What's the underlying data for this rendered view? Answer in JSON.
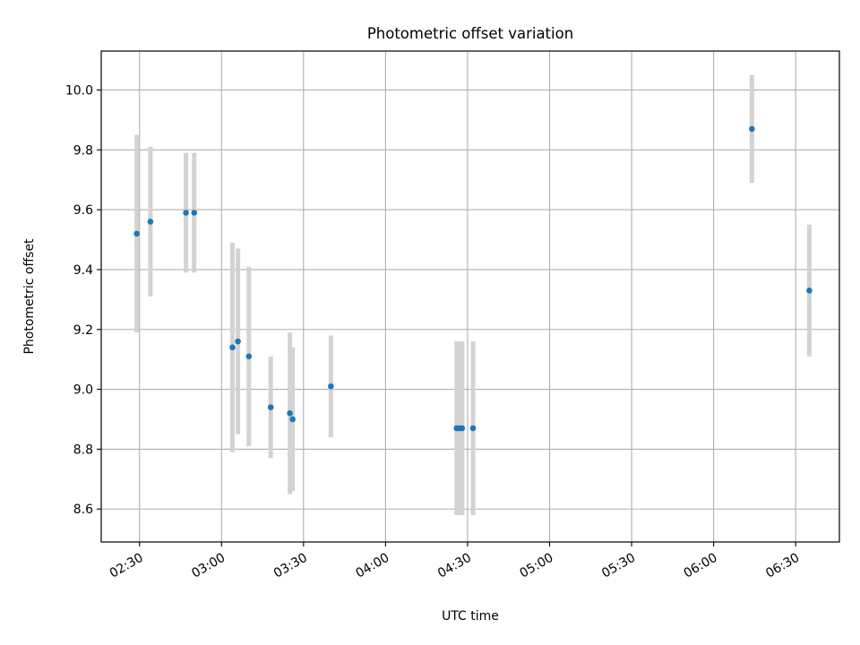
{
  "chart_data": {
    "type": "scatter",
    "title": "Photometric offset variation",
    "xlabel": "UTC time",
    "ylabel": "Photometric offset",
    "x_tick_labels": [
      "02:30",
      "03:00",
      "03:30",
      "04:00",
      "04:30",
      "05:00",
      "05:30",
      "06:00",
      "06:30"
    ],
    "y_tick_labels": [
      "8.6",
      "8.8",
      "9.0",
      "9.2",
      "9.4",
      "9.6",
      "9.8",
      "10.0"
    ],
    "ylim": [
      8.49,
      10.13
    ],
    "xlim": [
      "02:16",
      "06:46"
    ],
    "grid": true,
    "colors": {
      "points": "#1f77b4",
      "errorbars": "#d3d3d3",
      "grid": "#b0b0b0"
    },
    "points": [
      {
        "x": "02:29",
        "y": 9.52,
        "yerr": 0.33
      },
      {
        "x": "02:34",
        "y": 9.56,
        "yerr": 0.25
      },
      {
        "x": "02:47",
        "y": 9.59,
        "yerr": 0.2
      },
      {
        "x": "02:50",
        "y": 9.59,
        "yerr": 0.2
      },
      {
        "x": "03:04",
        "y": 9.14,
        "yerr": 0.35
      },
      {
        "x": "03:06",
        "y": 9.16,
        "yerr": 0.31
      },
      {
        "x": "03:10",
        "y": 9.11,
        "yerr": 0.3
      },
      {
        "x": "03:18",
        "y": 8.94,
        "yerr": 0.17
      },
      {
        "x": "03:25",
        "y": 8.92,
        "yerr": 0.27
      },
      {
        "x": "03:26",
        "y": 8.9,
        "yerr": 0.24
      },
      {
        "x": "03:40",
        "y": 9.01,
        "yerr": 0.17
      },
      {
        "x": "04:26",
        "y": 8.87,
        "yerr": 0.29
      },
      {
        "x": "04:27",
        "y": 8.87,
        "yerr": 0.29
      },
      {
        "x": "04:28",
        "y": 8.87,
        "yerr": 0.29
      },
      {
        "x": "04:32",
        "y": 8.87,
        "yerr": 0.29
      },
      {
        "x": "06:14",
        "y": 9.87,
        "yerr": 0.18
      },
      {
        "x": "06:35",
        "y": 9.33,
        "yerr": 0.22
      }
    ]
  }
}
